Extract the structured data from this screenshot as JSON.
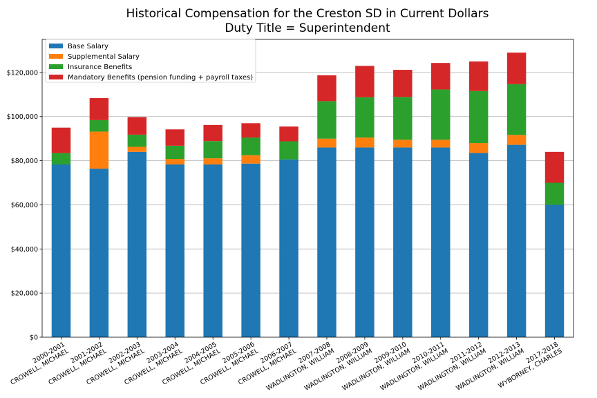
{
  "chart_data": {
    "type": "bar",
    "stacked": true,
    "title": "Historical Compensation for the Creston SD in Current Dollars",
    "subtitle": "Duty Title = Superintendent",
    "xlabel": "",
    "ylabel": "",
    "ylim": [
      0,
      135000
    ],
    "yticks": [
      0,
      20000,
      40000,
      60000,
      80000,
      100000,
      120000
    ],
    "ytick_labels": [
      "$0",
      "$20,000",
      "$40,000",
      "$60,000",
      "$80,000",
      "$100,000",
      "$120,000"
    ],
    "grid": "horizontal",
    "legend_position": "top-left",
    "categories": [
      [
        "2000-2001",
        "CROWELL, MICHAEL"
      ],
      [
        "2001-2002",
        "CROWELL, MICHAEL"
      ],
      [
        "2002-2003",
        "CROWELL, MICHAEL"
      ],
      [
        "2003-2004",
        "CROWELL, MICHAEL"
      ],
      [
        "2004-2005",
        "CROWELL, MICHAEL"
      ],
      [
        "2005-2006",
        "CROWELL, MICHAEL"
      ],
      [
        "2006-2007",
        "CROWELL, MICHAEL"
      ],
      [
        "2007-2008",
        "WADLINGTON, WILLIAM"
      ],
      [
        "2008-2009",
        "WADLINGTON, WILLIAM"
      ],
      [
        "2009-2010",
        "WADLINGTON, WILLIAM"
      ],
      [
        "2010-2011",
        "WADLINGTON, WILLIAM"
      ],
      [
        "2011-2012",
        "WADLINGTON, WILLIAM"
      ],
      [
        "2012-2013",
        "WADLINGTON, WILLIAM"
      ],
      [
        "2017-2018",
        "WYBORNEY, CHARLES"
      ]
    ],
    "series": [
      {
        "name": "Base Salary",
        "color": "#1f77b4",
        "values": [
          78300,
          76400,
          84000,
          78300,
          78300,
          78700,
          80600,
          86000,
          86000,
          86000,
          86000,
          83500,
          87200,
          60000
        ]
      },
      {
        "name": "Supplemental Salary",
        "color": "#ff7f0e",
        "values": [
          0,
          16800,
          2300,
          2500,
          2800,
          3800,
          0,
          4000,
          4500,
          3500,
          3500,
          4500,
          4500,
          0
        ]
      },
      {
        "name": "Insurance Benefits",
        "color": "#2ca02c",
        "values": [
          5200,
          5200,
          5500,
          6000,
          7800,
          8000,
          8200,
          17000,
          18300,
          19400,
          22800,
          23600,
          23000,
          10000
        ]
      },
      {
        "name": "Mandatory Benefits (pension funding + payroll taxes)",
        "color": "#d62728",
        "values": [
          11500,
          10000,
          8000,
          7400,
          7300,
          6500,
          6700,
          11700,
          14200,
          12300,
          12000,
          13400,
          14300,
          14000
        ]
      }
    ]
  }
}
